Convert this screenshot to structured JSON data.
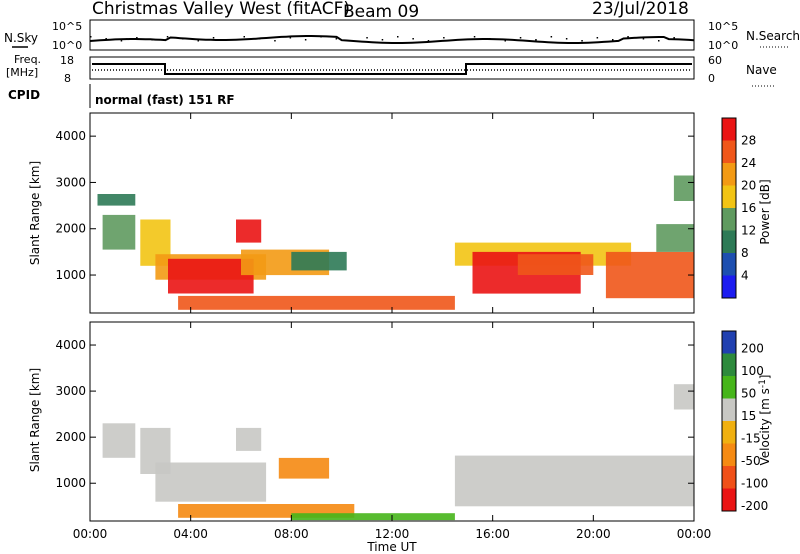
{
  "header": {
    "title": "Christmas Valley West (fitACF)",
    "beam": "Beam 09",
    "date": "23/Jul/2018"
  },
  "strips": {
    "nsky_label": "N.Sky",
    "nsky_ticks": [
      "10^5",
      "10^0"
    ],
    "nsearch_label": "N.Search",
    "nsearch_ticks": [
      "10^5",
      "10^0"
    ],
    "freq_label": [
      "Freq.",
      "[MHz]"
    ],
    "freq_ticks": [
      "18",
      "8"
    ],
    "nave_label": "Nave",
    "nave_ticks": [
      "60",
      "0"
    ],
    "cpid_label": "CPID",
    "cpid_value": "normal (fast) 151 RF"
  },
  "colors": {
    "power": [
      "#1c1cf0",
      "#1d4fb0",
      "#2d7a56",
      "#5f9a5f",
      "#f2c414",
      "#f39a14",
      "#f0571a",
      "#ea1414"
    ],
    "velocity": [
      "#ea1414",
      "#f05018",
      "#f58a12",
      "#f0b010",
      "#c8c8c4",
      "#46b51a",
      "#2d8a3c",
      "#2040b0"
    ]
  },
  "chart_data": [
    {
      "type": "heatmap",
      "title": "Power",
      "xlabel": "",
      "ylabel": "Slant Range [km]",
      "x_ticks": [
        "00:00",
        "04:00",
        "08:00",
        "12:00",
        "16:00",
        "20:00",
        "00:00"
      ],
      "y_ticks": [
        "1000",
        "2000",
        "3000",
        "4000"
      ],
      "ylim": [
        180,
        4500
      ],
      "colorbar": {
        "label": "Power [dB]",
        "ticks": [
          "4",
          "8",
          "12",
          "16",
          "20",
          "24",
          "28"
        ],
        "range": [
          0,
          32
        ]
      },
      "regions": [
        {
          "t": [
            0.5,
            1.8
          ],
          "r": [
            1550,
            2300
          ],
          "value": 12
        },
        {
          "t": [
            0.3,
            1.8
          ],
          "r": [
            2500,
            2750
          ],
          "value": 10
        },
        {
          "t": [
            2.0,
            3.2
          ],
          "r": [
            1200,
            2200
          ],
          "value": 18
        },
        {
          "t": [
            2.6,
            7.0
          ],
          "r": [
            900,
            1450
          ],
          "value": 22
        },
        {
          "t": [
            3.1,
            6.5
          ],
          "r": [
            600,
            1350
          ],
          "value": 30
        },
        {
          "t": [
            5.8,
            6.8
          ],
          "r": [
            1700,
            2200
          ],
          "value": 28
        },
        {
          "t": [
            6.0,
            9.5
          ],
          "r": [
            1000,
            1550
          ],
          "value": 20
        },
        {
          "t": [
            8.0,
            10.2
          ],
          "r": [
            1100,
            1500
          ],
          "value": 10
        },
        {
          "t": [
            3.5,
            14.5
          ],
          "r": [
            250,
            550
          ],
          "value": 26
        },
        {
          "t": [
            14.5,
            21.5
          ],
          "r": [
            1200,
            1700
          ],
          "value": 16
        },
        {
          "t": [
            15.2,
            19.5
          ],
          "r": [
            600,
            1500
          ],
          "value": 29
        },
        {
          "t": [
            17.0,
            20.0
          ],
          "r": [
            1000,
            1450
          ],
          "value": 24
        },
        {
          "t": [
            20.5,
            24.0
          ],
          "r": [
            500,
            1500
          ],
          "value": 26
        },
        {
          "t": [
            22.5,
            24.0
          ],
          "r": [
            1500,
            2100
          ],
          "value": 14
        },
        {
          "t": [
            23.2,
            24.0
          ],
          "r": [
            2600,
            3150
          ],
          "value": 12
        }
      ]
    },
    {
      "type": "heatmap",
      "title": "Velocity",
      "xlabel": "Time UT",
      "ylabel": "Slant Range [km]",
      "x_ticks": [
        "00:00",
        "04:00",
        "08:00",
        "12:00",
        "16:00",
        "20:00",
        "00:00"
      ],
      "y_ticks": [
        "1000",
        "2000",
        "3000",
        "4000"
      ],
      "ylim": [
        180,
        4500
      ],
      "colorbar": {
        "label": "Velocity [m s^-1]",
        "ticks": [
          "200",
          "100",
          "50",
          "15",
          "-15",
          "-50",
          "-100",
          "-200"
        ],
        "range": [
          -250,
          250
        ]
      },
      "regions": [
        {
          "t": [
            0.5,
            1.8
          ],
          "r": [
            1550,
            2300
          ],
          "value": 0
        },
        {
          "t": [
            2.0,
            3.2
          ],
          "r": [
            1200,
            2200
          ],
          "value": 0
        },
        {
          "t": [
            2.6,
            7.0
          ],
          "r": [
            600,
            1450
          ],
          "value": 0
        },
        {
          "t": [
            5.8,
            6.8
          ],
          "r": [
            1700,
            2200
          ],
          "value": 0
        },
        {
          "t": [
            7.5,
            9.5
          ],
          "r": [
            1100,
            1550
          ],
          "value": -60
        },
        {
          "t": [
            3.5,
            10.5
          ],
          "r": [
            250,
            550
          ],
          "value": -90
        },
        {
          "t": [
            8.0,
            14.5
          ],
          "r": [
            200,
            350
          ],
          "value": 40
        },
        {
          "t": [
            14.5,
            24.0
          ],
          "r": [
            500,
            1600
          ],
          "value": 0
        },
        {
          "t": [
            23.2,
            24.0
          ],
          "r": [
            2600,
            3150
          ],
          "value": 0
        }
      ]
    }
  ]
}
